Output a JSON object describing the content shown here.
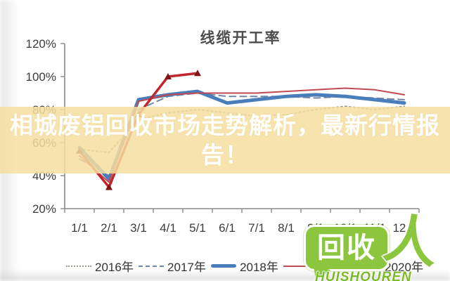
{
  "overlay": {
    "line1": "相城废铝回收市场走势解析，最新行情报",
    "line2": "告！",
    "bg_color": "#F5DEA0"
  },
  "watermark": {
    "bubble_text": "回收",
    "person_glyph": "人",
    "brand": "HUISHOUREN",
    "color": "#8CC63F"
  },
  "chart_data": {
    "type": "line",
    "title": "线缆开工率",
    "x_labels": [
      "1/1",
      "2/1",
      "3/1",
      "4/1",
      "5/1",
      "6/1",
      "7/1",
      "8/1",
      "9/1",
      "10/1",
      "11/1",
      "12/1"
    ],
    "y_ticks": [
      "120%",
      "100%",
      "80%",
      "60%",
      "40%",
      "20%"
    ],
    "y_tick_values": [
      120,
      100,
      80,
      60,
      40,
      20
    ],
    "ylim": [
      20,
      120
    ],
    "grid": false,
    "legend_position": "bottom",
    "axis_color": "#8a8a8a",
    "series": [
      {
        "name": "2016年",
        "style": "dotted",
        "color": "#9a9a8e",
        "values": [
          56,
          54,
          74,
          78,
          80,
          78,
          76,
          77,
          80,
          82,
          80,
          82
        ]
      },
      {
        "name": "2017年",
        "style": "dashed",
        "color": "#6e87a8",
        "values": [
          50,
          40,
          80,
          88,
          90,
          88,
          88,
          88,
          87,
          88,
          87,
          86
        ]
      },
      {
        "name": "2018年",
        "style": "solid-thick",
        "color": "#4a7ebb",
        "values": [
          57,
          38,
          86,
          89,
          91,
          84,
          86,
          88,
          89,
          88,
          86,
          84
        ]
      },
      {
        "name": "2019年",
        "style": "solid-thin",
        "color": "#c14953",
        "values": [
          52,
          36,
          85,
          89,
          90,
          90,
          90,
          91,
          92,
          93,
          92,
          89
        ]
      },
      {
        "name": "2020年",
        "style": "solid-marker",
        "color": "#c0272d",
        "marker_color": "#7e1416",
        "values": [
          55,
          33,
          77,
          100,
          102
        ]
      }
    ]
  }
}
